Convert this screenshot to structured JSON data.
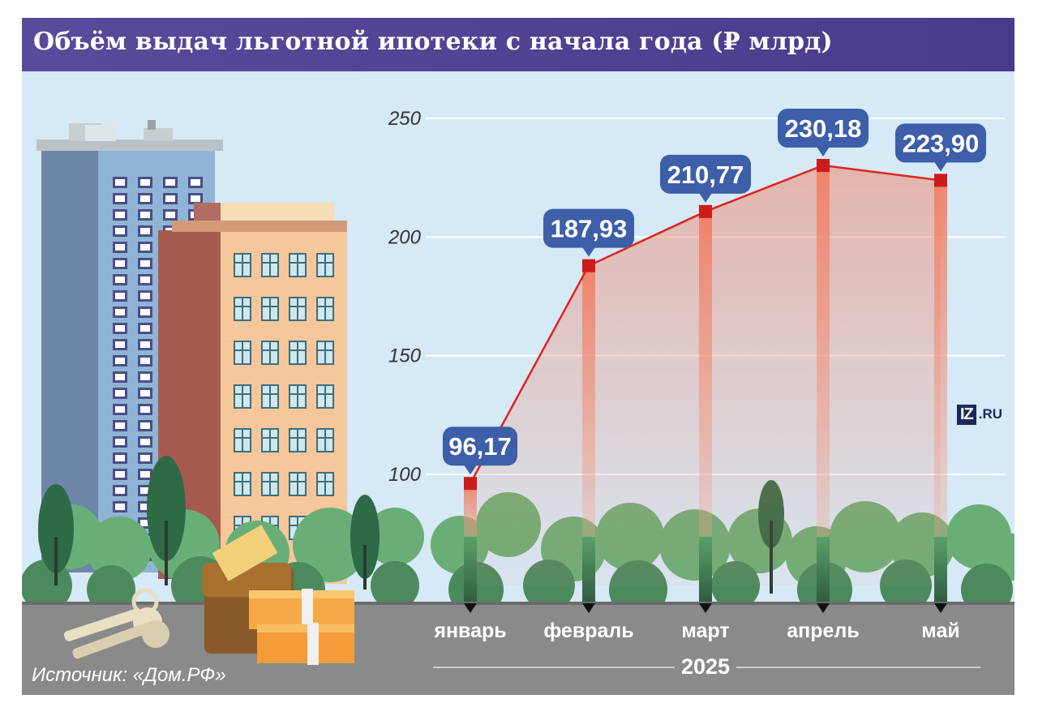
{
  "title": "Объём выдач льготной ипотеки с начала года (₽ млрд)",
  "source": "Источник: «Дом.РФ»",
  "logo": {
    "part1": "IZ",
    "part2": ".RU"
  },
  "year_label": "2025",
  "colors": {
    "header": "#4f3f92",
    "line": "#e0231f",
    "marker": "#cc1b1b",
    "bar": "#ef8a70",
    "label_bg": "#3d5ea8",
    "sky": "#d6e9f6",
    "road": "#8a8a8a",
    "grid": "#ffffff"
  },
  "chart_data": {
    "type": "line",
    "title": "Объём выдач льготной ипотеки с начала года (₽ млрд)",
    "categories": [
      "январь",
      "февраль",
      "март",
      "апрель",
      "май"
    ],
    "series": [
      {
        "values": [
          96.17,
          187.93,
          210.77,
          230.18,
          223.9
        ]
      }
    ],
    "data_labels": [
      "96,17",
      "187,93",
      "210,77",
      "230,18",
      "223,90"
    ],
    "yticks": [
      "100",
      "150",
      "200",
      "250"
    ],
    "ylim": [
      100,
      250
    ],
    "grid": true
  }
}
